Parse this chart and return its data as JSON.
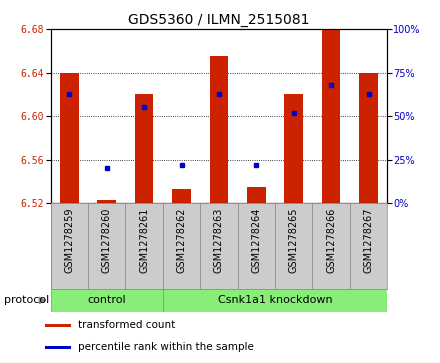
{
  "title": "GDS5360 / ILMN_2515081",
  "samples": [
    "GSM1278259",
    "GSM1278260",
    "GSM1278261",
    "GSM1278262",
    "GSM1278263",
    "GSM1278264",
    "GSM1278265",
    "GSM1278266",
    "GSM1278267"
  ],
  "transformed_counts": [
    6.64,
    6.523,
    6.62,
    6.533,
    6.655,
    6.535,
    6.62,
    6.68,
    6.64
  ],
  "percentile_ranks": [
    63,
    20,
    55,
    22,
    63,
    22,
    52,
    68,
    63
  ],
  "ylim": [
    6.52,
    6.68
  ],
  "yticks": [
    6.52,
    6.56,
    6.6,
    6.64,
    6.68
  ],
  "right_yticks": [
    0,
    25,
    50,
    75,
    100
  ],
  "bar_color": "#cc2200",
  "dot_color": "#0000cc",
  "bar_bottom": 6.52,
  "bar_width": 0.5,
  "protocol_groups": [
    {
      "label": "control",
      "start": 0,
      "end": 3
    },
    {
      "label": "Csnk1a1 knockdown",
      "start": 3,
      "end": 9
    }
  ],
  "protocol_label": "protocol",
  "protocol_bg_color": "#88ee77",
  "sample_bg_color": "#cccccc",
  "legend_items": [
    {
      "color": "#cc2200",
      "label": "transformed count"
    },
    {
      "color": "#0000cc",
      "label": "percentile rank within the sample"
    }
  ],
  "title_fontsize": 10,
  "tick_fontsize": 7,
  "label_fontsize": 7,
  "protocol_fontsize": 8
}
